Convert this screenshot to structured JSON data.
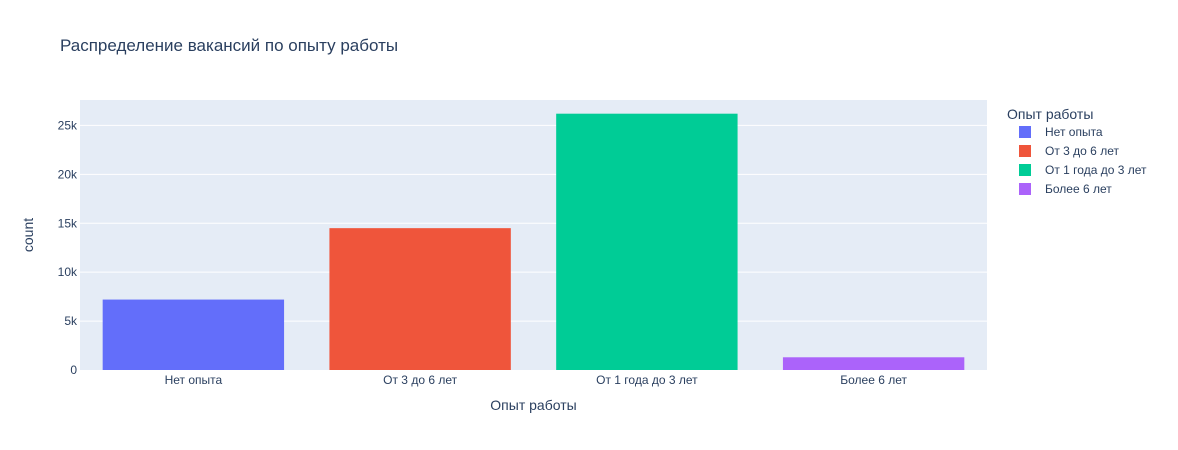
{
  "chart_data": {
    "type": "bar",
    "title": "Распределение вакансий по опыту работы",
    "xlabel": "Опыт работы",
    "ylabel": "count",
    "categories": [
      "Нет опыта",
      "От 3 до 6 лет",
      "От 1 года до 3 лет",
      "Более 6 лет"
    ],
    "series": [
      {
        "name": "Нет опыта",
        "category": "Нет опыта",
        "value": 7200,
        "color": "#636efa"
      },
      {
        "name": "От 3 до 6 лет",
        "category": "От 3 до 6 лет",
        "value": 14500,
        "color": "#ef553b"
      },
      {
        "name": "От 1 года до 3 лет",
        "category": "От 1 года до 3 лет",
        "value": 26200,
        "color": "#00cc96"
      },
      {
        "name": "Более 6 лет",
        "category": "Более 6 лет",
        "value": 1300,
        "color": "#ab63fa"
      }
    ],
    "ylim": [
      0,
      27600
    ],
    "yticks": [
      0,
      5000,
      10000,
      15000,
      20000,
      25000
    ],
    "ytick_labels": [
      "0",
      "5k",
      "10k",
      "15k",
      "20k",
      "25k"
    ],
    "legend_title": "Опыт работы",
    "legend_position": "right",
    "grid": true,
    "plot_background": "#e5ecf6"
  }
}
